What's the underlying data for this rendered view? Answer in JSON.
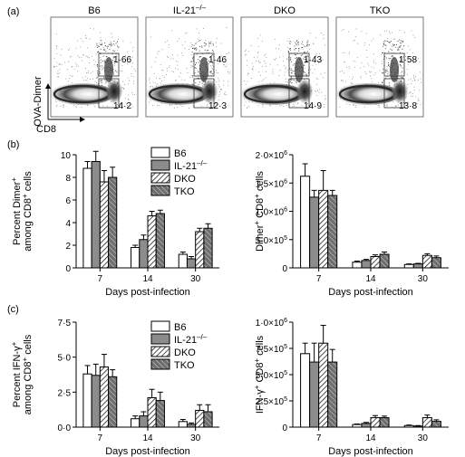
{
  "panel_labels": [
    "(a)",
    "(b)",
    "(c)"
  ],
  "flow": {
    "y_axis_label": "OVA-Dimer",
    "x_axis_label": "CD8",
    "panels": [
      {
        "title": "B6",
        "upper_value": "1·66",
        "lower_value": "14·2"
      },
      {
        "title": "IL-21",
        "title_sup": "–/–",
        "upper_value": "1·46",
        "lower_value": "12·3"
      },
      {
        "title": "DKO",
        "upper_value": "1·43",
        "lower_value": "14·9"
      },
      {
        "title": "TKO",
        "upper_value": "1·58",
        "lower_value": "13·8"
      }
    ]
  },
  "legend": [
    {
      "label": "B6",
      "sup": "",
      "pattern": "white"
    },
    {
      "label": "IL-21",
      "sup": "–/–",
      "pattern": "gray"
    },
    {
      "label": "DKO",
      "sup": "",
      "pattern": "hatch-light"
    },
    {
      "label": "TKO",
      "sup": "",
      "pattern": "hatch-dark"
    }
  ],
  "chart_data": [
    {
      "type": "bar",
      "id": "b-left",
      "categories": [
        "7",
        "14",
        "30"
      ],
      "xlabel": "Days post-infection",
      "ylabel_lines": [
        [
          {
            "t": "Percent Dimer"
          },
          {
            "t": "+",
            "sup": true
          }
        ],
        [
          {
            "t": "among CD8"
          },
          {
            "t": "+",
            "sup": true
          },
          {
            "t": " cells"
          }
        ]
      ],
      "ylim": [
        0,
        10
      ],
      "ticks": [
        {
          "v": 0,
          "label": "0"
        },
        {
          "v": 2,
          "label": "2"
        },
        {
          "v": 4,
          "label": "4"
        },
        {
          "v": 6,
          "label": "6"
        },
        {
          "v": 8,
          "label": "8"
        },
        {
          "v": 10,
          "label": "10"
        }
      ],
      "series": [
        {
          "name": "B6",
          "values": [
            8.8,
            1.8,
            1.2
          ],
          "errors": [
            0.6,
            0.2,
            0.2
          ]
        },
        {
          "name": "IL-21–/–",
          "values": [
            9.4,
            2.5,
            0.8
          ],
          "errors": [
            0.9,
            0.4,
            0.2
          ]
        },
        {
          "name": "DKO",
          "values": [
            7.6,
            4.6,
            3.2
          ],
          "errors": [
            1.0,
            0.4,
            0.3
          ]
        },
        {
          "name": "TKO",
          "values": [
            8.0,
            4.8,
            3.5
          ],
          "errors": [
            0.9,
            0.3,
            0.4
          ]
        }
      ]
    },
    {
      "type": "bar",
      "id": "b-right",
      "categories": [
        "7",
        "14",
        "30"
      ],
      "xlabel": "Days post-infection",
      "ylabel_lines": [
        [
          {
            "t": "Dimer"
          },
          {
            "t": "+",
            "sup": true
          },
          {
            "t": " CD8"
          },
          {
            "t": "+",
            "sup": true
          },
          {
            "t": " cells"
          }
        ]
      ],
      "ylim": [
        0,
        2000000
      ],
      "ticks": [
        {
          "v": 0,
          "label": "0"
        },
        {
          "v": 500000,
          "label": "5·0×10",
          "exp": "5"
        },
        {
          "v": 1000000,
          "label": "1·0×10",
          "exp": "6"
        },
        {
          "v": 1500000,
          "label": "1·5×10",
          "exp": "6"
        },
        {
          "v": 2000000,
          "label": "2·0×10",
          "exp": "6"
        }
      ],
      "series": [
        {
          "name": "B6",
          "values": [
            1620000,
            100000,
            60000
          ],
          "errors": [
            220000,
            20000,
            10000
          ]
        },
        {
          "name": "IL-21–/–",
          "values": [
            1250000,
            130000,
            70000
          ],
          "errors": [
            120000,
            20000,
            10000
          ]
        },
        {
          "name": "DKO",
          "values": [
            1370000,
            200000,
            220000
          ],
          "errors": [
            350000,
            30000,
            30000
          ]
        },
        {
          "name": "TKO",
          "values": [
            1280000,
            240000,
            180000
          ],
          "errors": [
            90000,
            40000,
            30000
          ]
        }
      ]
    },
    {
      "type": "bar",
      "id": "c-left",
      "categories": [
        "7",
        "14",
        "30"
      ],
      "xlabel": "Days post-infection",
      "ylabel_lines": [
        [
          {
            "t": "Percent IFN-γ"
          },
          {
            "t": "+",
            "sup": true
          }
        ],
        [
          {
            "t": "among CD8"
          },
          {
            "t": "+",
            "sup": true
          },
          {
            "t": " cells"
          }
        ]
      ],
      "ylim": [
        0,
        7.5
      ],
      "ticks": [
        {
          "v": 0,
          "label": "0·0"
        },
        {
          "v": 2.5,
          "label": "2·5"
        },
        {
          "v": 5,
          "label": "5·0"
        },
        {
          "v": 7.5,
          "label": "7·5"
        }
      ],
      "series": [
        {
          "name": "B6",
          "values": [
            3.8,
            0.6,
            0.4
          ],
          "errors": [
            0.6,
            0.2,
            0.15
          ]
        },
        {
          "name": "IL-21–/–",
          "values": [
            3.7,
            0.8,
            0.2
          ],
          "errors": [
            0.8,
            0.3,
            0.1
          ]
        },
        {
          "name": "DKO",
          "values": [
            4.3,
            2.1,
            1.2
          ],
          "errors": [
            0.9,
            0.6,
            0.4
          ]
        },
        {
          "name": "TKO",
          "values": [
            3.6,
            1.9,
            1.1
          ],
          "errors": [
            0.5,
            0.6,
            0.5
          ]
        }
      ]
    },
    {
      "type": "bar",
      "id": "c-right",
      "categories": [
        "7",
        "14",
        "30"
      ],
      "xlabel": "Days post-infection",
      "ylabel_lines": [
        [
          {
            "t": "IFN-γ"
          },
          {
            "t": "+",
            "sup": true
          },
          {
            "t": " CD8"
          },
          {
            "t": "+",
            "sup": true
          },
          {
            "t": " cells"
          }
        ]
      ],
      "ylim": [
        0,
        1000000
      ],
      "ticks": [
        {
          "v": 0,
          "label": "0"
        },
        {
          "v": 250000,
          "label": "2·5×10",
          "exp": "5"
        },
        {
          "v": 500000,
          "label": "5·0×10",
          "exp": "5"
        },
        {
          "v": 750000,
          "label": "7·5×10",
          "exp": "5"
        },
        {
          "v": 1000000,
          "label": "1·0×10",
          "exp": "6"
        }
      ],
      "series": [
        {
          "name": "B6",
          "values": [
            700000,
            25000,
            15000
          ],
          "errors": [
            100000,
            5000,
            5000
          ]
        },
        {
          "name": "IL-21–/–",
          "values": [
            620000,
            35000,
            10000
          ],
          "errors": [
            180000,
            10000,
            5000
          ]
        },
        {
          "name": "DKO",
          "values": [
            800000,
            90000,
            90000
          ],
          "errors": [
            170000,
            20000,
            25000
          ]
        },
        {
          "name": "TKO",
          "values": [
            620000,
            90000,
            55000
          ],
          "errors": [
            120000,
            15000,
            15000
          ]
        }
      ]
    }
  ]
}
